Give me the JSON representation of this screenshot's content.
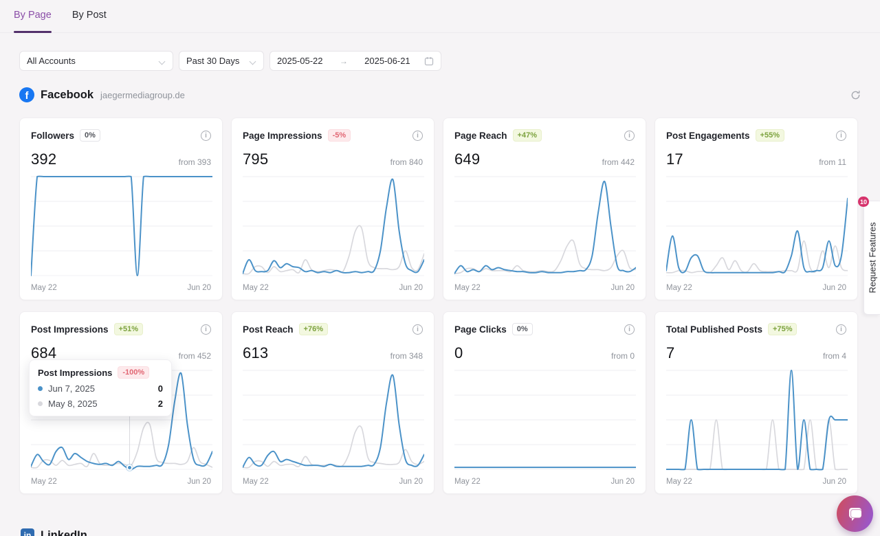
{
  "tabs": [
    {
      "label": "By Page",
      "active": true
    },
    {
      "label": "By Post",
      "active": false
    }
  ],
  "filters": {
    "accounts": "All Accounts",
    "period": "Past 30 Days",
    "date_from": "2025-05-22",
    "date_to": "2025-06-21"
  },
  "section": {
    "network": "Facebook",
    "account": "jaegermediagroup.de"
  },
  "axis": {
    "start": "May 22",
    "end": "Jun 20"
  },
  "colors": {
    "accent_purple": "#8b4fa8",
    "line_current": "#4b92c8",
    "line_previous": "#d8d8dd",
    "facebook_blue": "#1877f2",
    "badge_count_red": "#d6336c",
    "positive_text": "#7ca23e",
    "negative_text": "#e16673"
  },
  "cards": [
    {
      "title": "Followers",
      "change": "0%",
      "change_type": "neutral",
      "value": "392",
      "from": "from 393",
      "current": [
        0,
        100,
        100,
        100,
        100,
        100,
        100,
        100,
        100,
        100,
        100,
        100,
        100,
        100,
        100,
        100,
        100,
        0,
        100,
        100,
        100,
        100,
        100,
        100,
        100,
        100,
        100,
        100,
        100,
        100
      ],
      "previous": []
    },
    {
      "title": "Page Impressions",
      "change": "-5%",
      "change_type": "negative",
      "value": "795",
      "from": "from 840",
      "current": [
        2,
        16,
        5,
        4,
        5,
        15,
        8,
        12,
        9,
        8,
        4,
        5,
        3,
        4,
        3,
        5,
        3,
        3,
        4,
        3,
        4,
        5,
        25,
        70,
        97,
        45,
        12,
        5,
        4,
        16
      ],
      "previous": [
        2,
        2,
        9,
        9,
        3,
        9,
        4,
        5,
        6,
        3,
        16,
        6,
        4,
        5,
        6,
        5,
        4,
        20,
        45,
        48,
        15,
        8,
        7,
        7,
        6,
        9,
        25,
        8,
        6,
        22
      ]
    },
    {
      "title": "Page Reach",
      "change": "+47%",
      "change_type": "positive",
      "value": "649",
      "from": "from 442",
      "current": [
        2,
        10,
        4,
        6,
        4,
        10,
        6,
        8,
        6,
        5,
        4,
        4,
        3,
        3,
        4,
        3,
        3,
        3,
        4,
        4,
        5,
        6,
        20,
        65,
        95,
        50,
        10,
        5,
        4,
        8
      ],
      "previous": [
        2,
        3,
        7,
        7,
        4,
        7,
        5,
        5,
        5,
        4,
        10,
        5,
        4,
        4,
        5,
        4,
        5,
        15,
        30,
        35,
        12,
        7,
        6,
        6,
        5,
        8,
        20,
        25,
        8,
        6
      ]
    },
    {
      "title": "Post Engagements",
      "change": "+55%",
      "change_type": "positive",
      "value": "17",
      "from": "from 11",
      "current": [
        5,
        40,
        8,
        4,
        18,
        20,
        5,
        3,
        3,
        3,
        3,
        3,
        3,
        3,
        3,
        3,
        3,
        3,
        4,
        4,
        20,
        45,
        8,
        4,
        5,
        8,
        35,
        10,
        20,
        78
      ],
      "previous": [
        3,
        3,
        5,
        5,
        3,
        4,
        4,
        3,
        10,
        18,
        6,
        15,
        5,
        4,
        12,
        5,
        4,
        4,
        4,
        5,
        5,
        6,
        35,
        8,
        5,
        25,
        8,
        30,
        8,
        5
      ]
    },
    {
      "title": "Post Impressions",
      "change": "+51%",
      "change_type": "positive",
      "value": "684",
      "from": "from 452",
      "current": [
        3,
        15,
        8,
        5,
        18,
        22,
        10,
        16,
        12,
        8,
        6,
        5,
        6,
        4,
        8,
        3,
        0,
        3,
        3,
        3,
        4,
        5,
        25,
        70,
        97,
        45,
        10,
        4,
        5,
        18
      ],
      "previous": [
        2,
        2,
        9,
        9,
        4,
        9,
        4,
        5,
        6,
        3,
        16,
        6,
        4,
        5,
        6,
        5,
        4,
        18,
        42,
        45,
        12,
        7,
        6,
        6,
        5,
        8,
        22,
        8,
        5,
        2
      ]
    },
    {
      "title": "Post Reach",
      "change": "+76%",
      "change_type": "positive",
      "value": "613",
      "from": "from 348",
      "current": [
        2,
        12,
        5,
        4,
        14,
        18,
        8,
        10,
        8,
        6,
        4,
        4,
        4,
        3,
        5,
        3,
        3,
        3,
        3,
        3,
        4,
        5,
        22,
        68,
        95,
        45,
        10,
        4,
        4,
        15
      ],
      "previous": [
        2,
        2,
        8,
        8,
        3,
        8,
        4,
        5,
        5,
        3,
        13,
        5,
        4,
        4,
        5,
        4,
        4,
        16,
        38,
        42,
        12,
        7,
        6,
        5,
        5,
        7,
        20,
        8,
        5,
        8
      ]
    },
    {
      "title": "Page Clicks",
      "change": "0%",
      "change_type": "neutral",
      "value": "0",
      "from": "from 0",
      "current": [
        2,
        2,
        2,
        2,
        2,
        2,
        2,
        2,
        2,
        2,
        2,
        2,
        2,
        2,
        2,
        2,
        2,
        2,
        2,
        2,
        2,
        2,
        2,
        2,
        2,
        2,
        2,
        2,
        2,
        2
      ],
      "previous": [
        2,
        2,
        2,
        2,
        2,
        2,
        2,
        2,
        2,
        2,
        2,
        2,
        2,
        2,
        2,
        2,
        2,
        2,
        2,
        2,
        2,
        2,
        2,
        2,
        2,
        2,
        2,
        2,
        2,
        2
      ]
    },
    {
      "title": "Total Published Posts",
      "change": "+75%",
      "change_type": "positive",
      "value": "7",
      "from": "from 4",
      "current": [
        0,
        0,
        0,
        0,
        50,
        0,
        0,
        0,
        0,
        0,
        0,
        0,
        0,
        0,
        0,
        0,
        0,
        0,
        0,
        0,
        100,
        0,
        50,
        0,
        0,
        0,
        50,
        50,
        50,
        50
      ],
      "previous": [
        0,
        0,
        0,
        0,
        0,
        0,
        0,
        0,
        50,
        0,
        0,
        0,
        0,
        0,
        0,
        0,
        0,
        50,
        0,
        0,
        0,
        0,
        0,
        50,
        0,
        0,
        50,
        0,
        0,
        0
      ]
    }
  ],
  "tooltip": {
    "card_index": 4,
    "title": "Post Impressions",
    "change": "-100%",
    "rows": [
      {
        "label": "Jun 7, 2025",
        "value": "0",
        "series": "blue"
      },
      {
        "label": "May 8, 2025",
        "value": "2",
        "series": "gray"
      }
    ]
  },
  "request_features": {
    "label": "Request Features",
    "badge": "10"
  },
  "footer": {
    "next_section": "LinkedIn"
  }
}
